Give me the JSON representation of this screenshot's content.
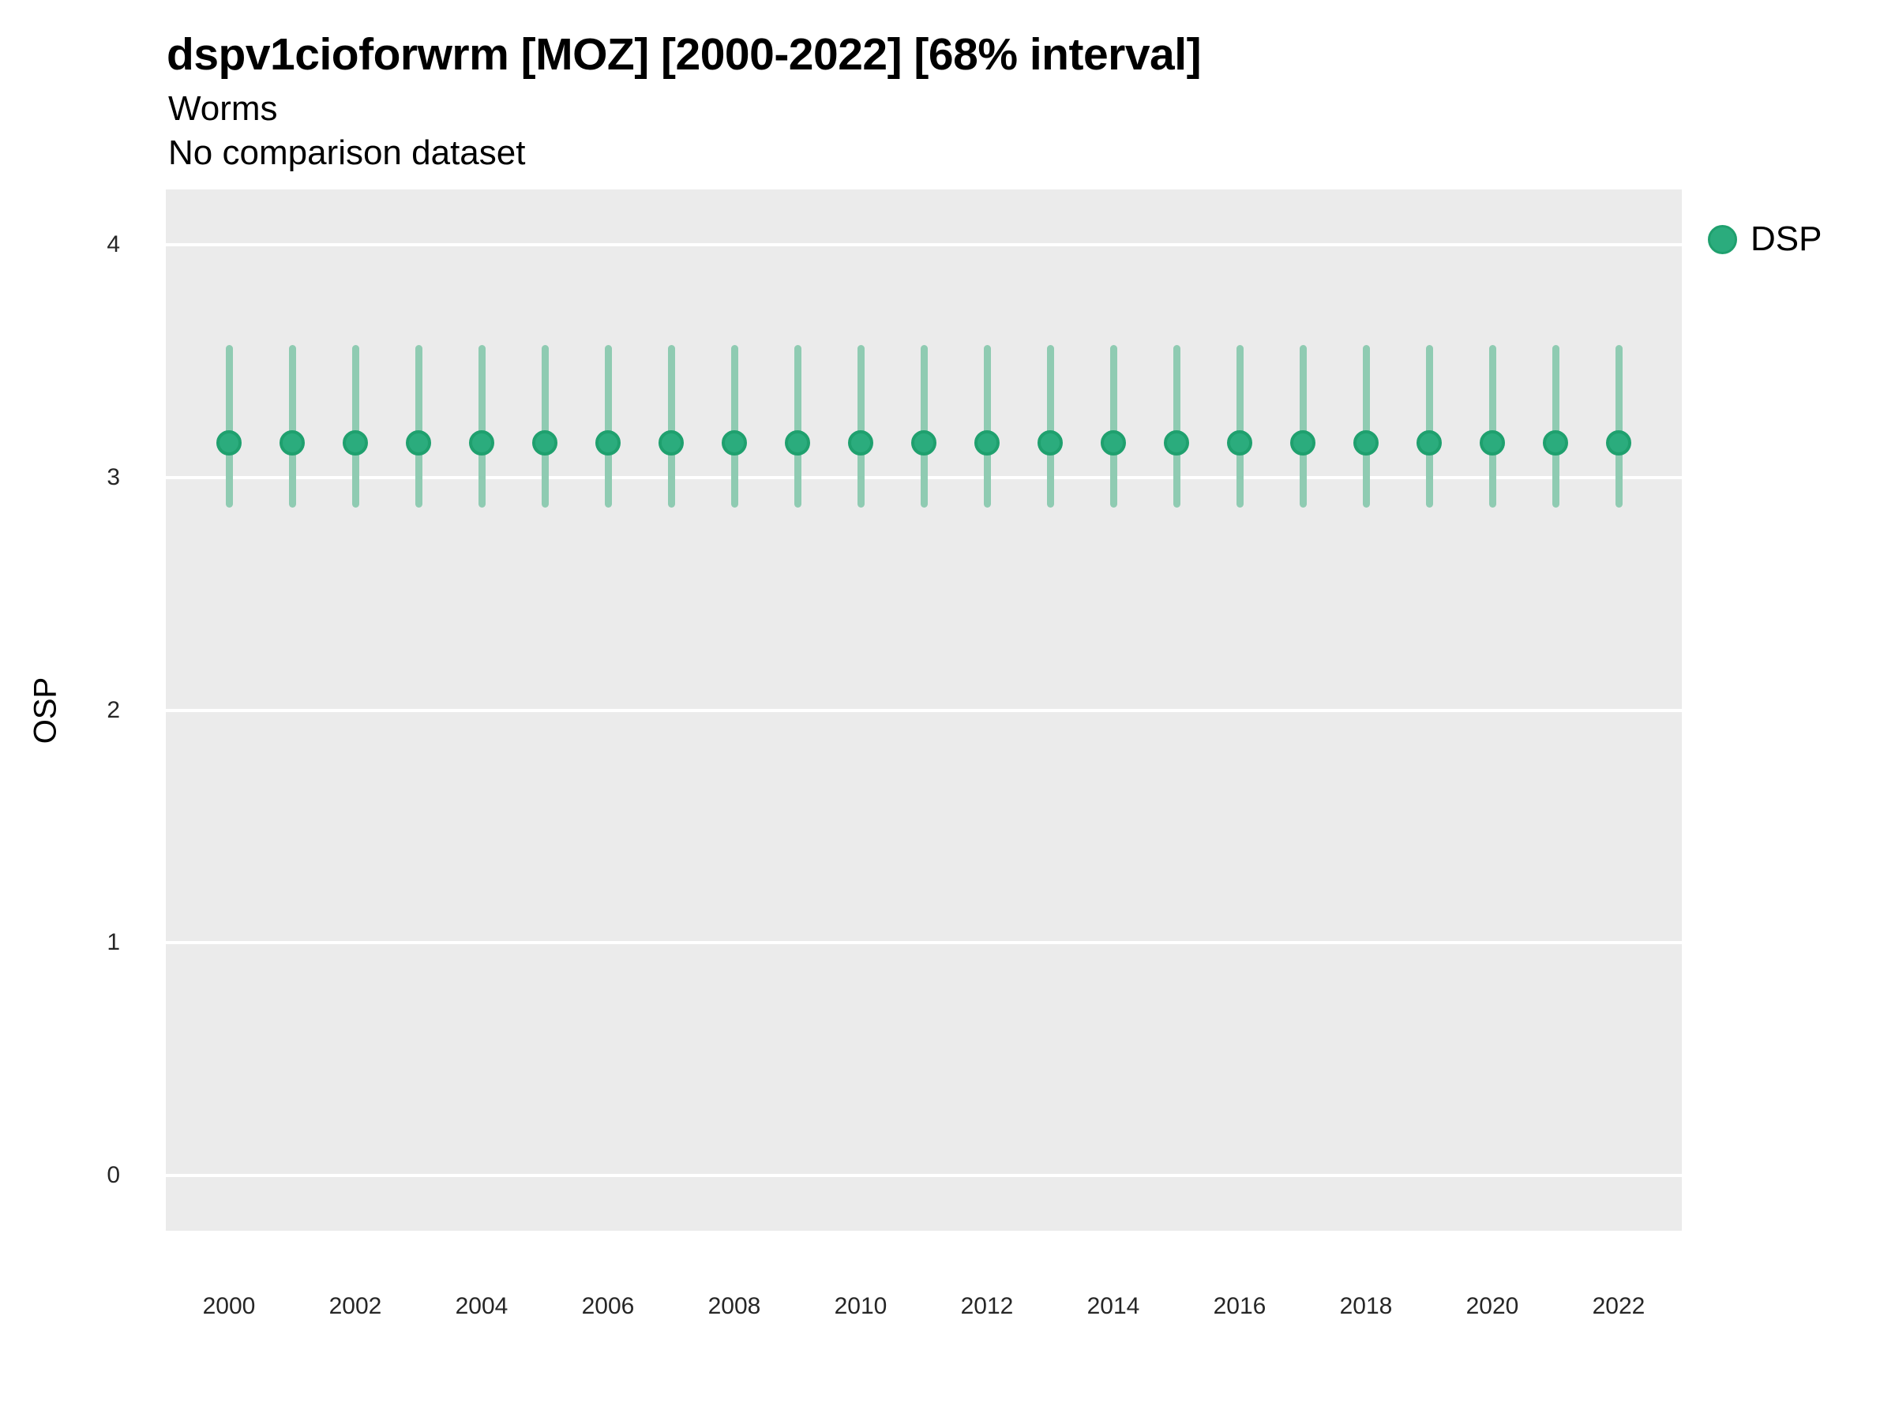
{
  "header": {
    "title": "dspv1cioforwrm [MOZ] [2000-2022] [68% interval]",
    "subtitle": "Worms",
    "note": "No comparison dataset"
  },
  "colors": {
    "page_background": "#FFFFFF",
    "panel_background": "#EBEBEB",
    "gridline": "#FFFFFF",
    "point_fill": "#2BAC7D",
    "point_border": "#1FA06E",
    "errorbar": "#8FCBB2",
    "tick_label": "#262626",
    "text": "#000000"
  },
  "chart_data": {
    "type": "scatter",
    "title": "dspv1cioforwrm [MOZ] [2000-2022] [68% interval]",
    "subtitle": "Worms",
    "note": "No comparison dataset",
    "xlabel": "",
    "ylabel": "OSP",
    "interval_label": "68% interval",
    "legend_position": "right-top",
    "grid": "horizontal-major-only",
    "xlim": [
      1999,
      2023
    ],
    "ylim": [
      -0.2375,
      4.2375
    ],
    "yticks": [
      0,
      1,
      2,
      3,
      4
    ],
    "xticks": [
      2000,
      2002,
      2004,
      2006,
      2008,
      2010,
      2012,
      2014,
      2016,
      2018,
      2020,
      2022
    ],
    "series": [
      {
        "name": "DSP",
        "x": [
          2000,
          2001,
          2002,
          2003,
          2004,
          2005,
          2006,
          2007,
          2008,
          2009,
          2010,
          2011,
          2012,
          2013,
          2014,
          2015,
          2016,
          2017,
          2018,
          2019,
          2020,
          2021,
          2022
        ],
        "y": [
          3.15,
          3.15,
          3.15,
          3.15,
          3.15,
          3.15,
          3.15,
          3.15,
          3.15,
          3.15,
          3.15,
          3.15,
          3.15,
          3.15,
          3.15,
          3.15,
          3.15,
          3.15,
          3.15,
          3.15,
          3.15,
          3.15,
          3.15
        ],
        "y_lower": [
          2.87,
          2.87,
          2.87,
          2.87,
          2.87,
          2.87,
          2.87,
          2.87,
          2.87,
          2.87,
          2.87,
          2.87,
          2.87,
          2.87,
          2.87,
          2.87,
          2.87,
          2.87,
          2.87,
          2.87,
          2.87,
          2.87,
          2.87
        ],
        "y_upper": [
          3.57,
          3.57,
          3.57,
          3.57,
          3.57,
          3.57,
          3.57,
          3.57,
          3.57,
          3.57,
          3.57,
          3.57,
          3.57,
          3.57,
          3.57,
          3.57,
          3.57,
          3.57,
          3.57,
          3.57,
          3.57,
          3.57,
          3.57
        ]
      }
    ]
  }
}
